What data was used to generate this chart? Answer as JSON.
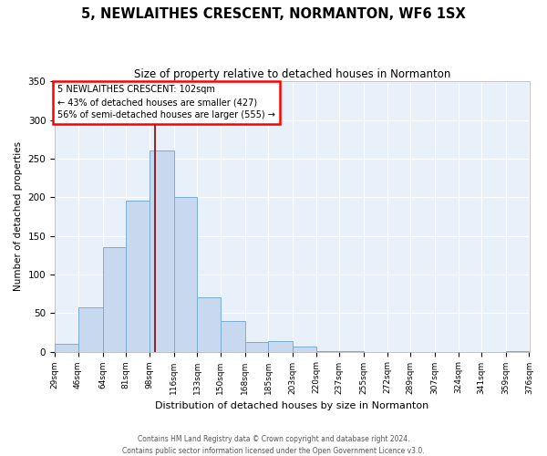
{
  "title": "5, NEWLAITHES CRESCENT, NORMANTON, WF6 1SX",
  "subtitle": "Size of property relative to detached houses in Normanton",
  "xlabel": "Distribution of detached houses by size in Normanton",
  "ylabel": "Number of detached properties",
  "bar_color": "#c8d9ef",
  "bar_edge_color": "#7aadd4",
  "background_color": "#e8f0fa",
  "bin_labels": [
    "29sqm",
    "46sqm",
    "64sqm",
    "81sqm",
    "98sqm",
    "116sqm",
    "133sqm",
    "150sqm",
    "168sqm",
    "185sqm",
    "203sqm",
    "220sqm",
    "237sqm",
    "255sqm",
    "272sqm",
    "289sqm",
    "307sqm",
    "324sqm",
    "341sqm",
    "359sqm",
    "376sqm"
  ],
  "bin_edges": [
    29,
    46,
    64,
    81,
    98,
    116,
    133,
    150,
    168,
    185,
    203,
    220,
    237,
    255,
    272,
    289,
    307,
    324,
    341,
    359,
    376
  ],
  "bar_values": [
    10,
    57,
    135,
    195,
    260,
    200,
    70,
    40,
    13,
    14,
    6,
    1,
    1,
    0,
    0,
    0,
    0,
    0,
    0,
    1
  ],
  "ylim": [
    0,
    350
  ],
  "red_line_x": 102,
  "annotation_title": "5 NEWLAITHES CRESCENT: 102sqm",
  "annotation_line1": "← 43% of detached houses are smaller (427)",
  "annotation_line2": "56% of semi-detached houses are larger (555) →",
  "footer_line1": "Contains HM Land Registry data © Crown copyright and database right 2024.",
  "footer_line2": "Contains public sector information licensed under the Open Government Licence v3.0."
}
